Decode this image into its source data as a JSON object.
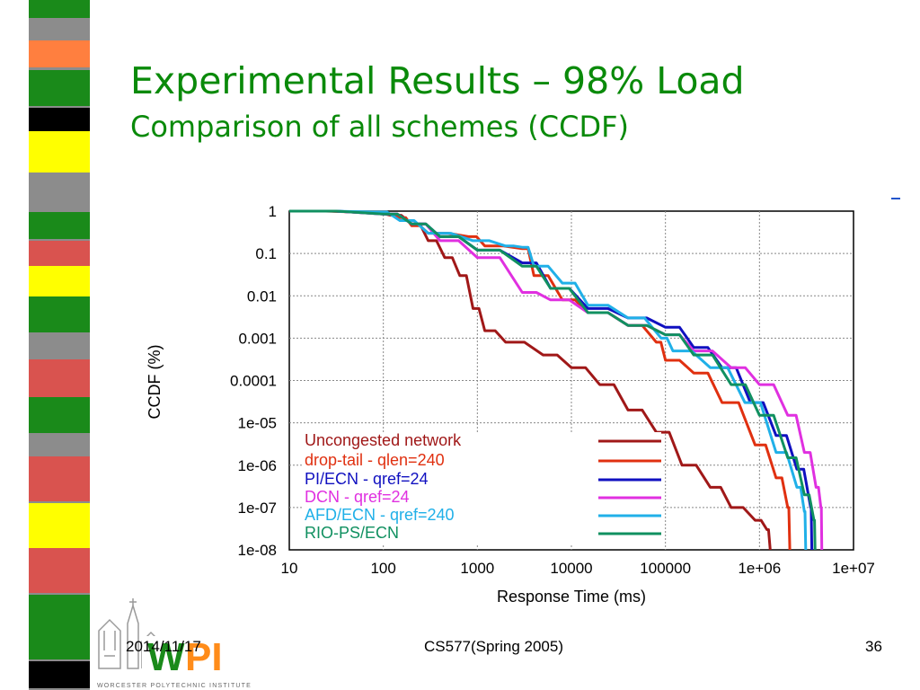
{
  "slide": {
    "title": "Experimental Results – 98% Load",
    "subtitle": "Comparison of all schemes (CCDF)"
  },
  "footer": {
    "date": "2014/11/17",
    "course": "CS577(Spring 2005)",
    "page": "36"
  },
  "logo": {
    "text": "WPI",
    "caption": "WORCESTER POLYTECHNIC INSTITUTE"
  },
  "colors": {
    "title": "#0a8a0a",
    "stripe_bg": "#8c8c8c",
    "stripe_blocks": [
      "#1a8a1a",
      "#ff7f3f",
      "#1a8a1a",
      "#000000",
      "#ffff00",
      "#1a8a1a",
      "#d9534f",
      "#ffff00",
      "#1a8a1a",
      "#d9534f",
      "#1a8a1a",
      "#d9534f",
      "#ffff00",
      "#d9534f",
      "#1a8a1a",
      "#000000"
    ]
  },
  "chart_data": {
    "type": "line",
    "xlabel": "Response Time (ms)",
    "ylabel": "CCDF (%)",
    "x_scale": "log",
    "y_scale": "log",
    "xlim": [
      10,
      10000000
    ],
    "ylim": [
      1e-08,
      1
    ],
    "x_ticks": [
      "10",
      "100",
      "1000",
      "10000",
      "100000",
      "1e+06",
      "1e+07"
    ],
    "y_ticks": [
      "1",
      "0.1",
      "0.01",
      "0.001",
      "0.0001",
      "1e-05",
      "1e-06",
      "1e-07",
      "1e-08"
    ],
    "grid": true,
    "legend_position": "bottom-left",
    "series": [
      {
        "name": "Uncongested network",
        "color": "#a01818",
        "points": [
          [
            10,
            1
          ],
          [
            60,
            0.95
          ],
          [
            120,
            0.8
          ],
          [
            200,
            0.5
          ],
          [
            300,
            0.2
          ],
          [
            450,
            0.08
          ],
          [
            650,
            0.03
          ],
          [
            900,
            0.005
          ],
          [
            1200,
            0.0015
          ],
          [
            2000,
            0.0008
          ],
          [
            5000,
            0.0004
          ],
          [
            10000,
            0.0002
          ],
          [
            20000,
            8e-05
          ],
          [
            40000,
            2e-05
          ],
          [
            80000,
            6e-06
          ],
          [
            150000,
            1e-06
          ],
          [
            300000,
            3e-07
          ],
          [
            500000,
            1e-07
          ],
          [
            900000,
            5e-08
          ],
          [
            1200000,
            3e-08
          ],
          [
            1300000,
            1e-08
          ]
        ]
      },
      {
        "name": "drop-tail - qlen=240",
        "color": "#e03010",
        "points": [
          [
            10,
            1
          ],
          [
            80,
            0.9
          ],
          [
            150,
            0.7
          ],
          [
            200,
            0.45
          ],
          [
            300,
            0.3
          ],
          [
            800,
            0.25
          ],
          [
            1200,
            0.15
          ],
          [
            3000,
            0.13
          ],
          [
            4000,
            0.03
          ],
          [
            8000,
            0.008
          ],
          [
            15000,
            0.004
          ],
          [
            40000,
            0.002
          ],
          [
            80000,
            0.0008
          ],
          [
            100000,
            0.0003
          ],
          [
            200000,
            0.00015
          ],
          [
            400000,
            3e-05
          ],
          [
            900000,
            3e-06
          ],
          [
            1500000,
            5e-07
          ],
          [
            2000000,
            1e-07
          ],
          [
            2100000,
            1e-08
          ]
        ]
      },
      {
        "name": "PI/ECN - qref=24",
        "color": "#1010c0",
        "points": [
          [
            10,
            1
          ],
          [
            100,
            0.85
          ],
          [
            200,
            0.5
          ],
          [
            400,
            0.25
          ],
          [
            1000,
            0.12
          ],
          [
            3000,
            0.06
          ],
          [
            6000,
            0.015
          ],
          [
            15000,
            0.005
          ],
          [
            40000,
            0.003
          ],
          [
            100000,
            0.0018
          ],
          [
            200000,
            0.0006
          ],
          [
            400000,
            0.0002
          ],
          [
            800000,
            3e-05
          ],
          [
            1500000,
            5e-06
          ],
          [
            2500000,
            8e-07
          ],
          [
            3500000,
            1e-07
          ],
          [
            3600000,
            1e-08
          ]
        ]
      },
      {
        "name": "DCN - qref=24",
        "color": "#e030e0",
        "points": [
          [
            10,
            1
          ],
          [
            100,
            0.85
          ],
          [
            200,
            0.5
          ],
          [
            400,
            0.2
          ],
          [
            1000,
            0.08
          ],
          [
            3000,
            0.012
          ],
          [
            6000,
            0.008
          ],
          [
            15000,
            0.004
          ],
          [
            40000,
            0.002
          ],
          [
            100000,
            0.0012
          ],
          [
            200000,
            0.0005
          ],
          [
            500000,
            0.0002
          ],
          [
            1000000,
            8e-05
          ],
          [
            2000000,
            1.5e-05
          ],
          [
            3000000,
            2e-06
          ],
          [
            4000000,
            3e-07
          ],
          [
            4500000,
            1e-07
          ],
          [
            4600000,
            1e-08
          ]
        ]
      },
      {
        "name": "AFD/ECN - qref=240",
        "color": "#20b0e8",
        "points": [
          [
            10,
            1
          ],
          [
            80,
            0.95
          ],
          [
            150,
            0.6
          ],
          [
            300,
            0.3
          ],
          [
            900,
            0.2
          ],
          [
            2000,
            0.15
          ],
          [
            3000,
            0.14
          ],
          [
            4000,
            0.05
          ],
          [
            8000,
            0.02
          ],
          [
            15000,
            0.006
          ],
          [
            40000,
            0.003
          ],
          [
            90000,
            0.001
          ],
          [
            120000,
            0.0005
          ],
          [
            300000,
            0.0002
          ],
          [
            700000,
            3e-05
          ],
          [
            1500000,
            2e-06
          ],
          [
            2500000,
            3e-07
          ],
          [
            3000000,
            8e-08
          ],
          [
            3100000,
            1e-08
          ]
        ]
      },
      {
        "name": "RIO-PS/ECN",
        "color": "#109060",
        "points": [
          [
            10,
            1
          ],
          [
            100,
            0.85
          ],
          [
            200,
            0.5
          ],
          [
            400,
            0.25
          ],
          [
            1000,
            0.12
          ],
          [
            3000,
            0.05
          ],
          [
            6000,
            0.015
          ],
          [
            15000,
            0.004
          ],
          [
            40000,
            0.002
          ],
          [
            100000,
            0.0012
          ],
          [
            200000,
            0.0004
          ],
          [
            500000,
            8e-05
          ],
          [
            1000000,
            1.5e-05
          ],
          [
            2000000,
            1.5e-06
          ],
          [
            3000000,
            2e-07
          ],
          [
            3800000,
            5e-08
          ],
          [
            3900000,
            1e-08
          ]
        ]
      }
    ]
  }
}
